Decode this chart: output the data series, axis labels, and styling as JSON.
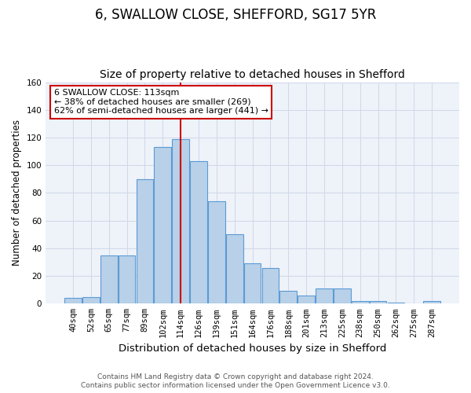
{
  "title1": "6, SWALLOW CLOSE, SHEFFORD, SG17 5YR",
  "title2": "Size of property relative to detached houses in Shefford",
  "xlabel": "Distribution of detached houses by size in Shefford",
  "ylabel": "Number of detached properties",
  "bar_labels": [
    "40sqm",
    "52sqm",
    "65sqm",
    "77sqm",
    "89sqm",
    "102sqm",
    "114sqm",
    "126sqm",
    "139sqm",
    "151sqm",
    "164sqm",
    "176sqm",
    "188sqm",
    "201sqm",
    "213sqm",
    "225sqm",
    "238sqm",
    "250sqm",
    "262sqm",
    "275sqm",
    "287sqm"
  ],
  "bar_values": [
    4,
    5,
    35,
    35,
    90,
    113,
    119,
    103,
    74,
    50,
    29,
    26,
    9,
    6,
    11,
    11,
    2,
    2,
    1,
    0,
    2
  ],
  "bar_color": "#b8d0e8",
  "bar_edge_color": "#5b9bd5",
  "vline_x": 6,
  "vline_color": "#cc0000",
  "annotation_text": "6 SWALLOW CLOSE: 113sqm\n← 38% of detached houses are smaller (269)\n62% of semi-detached houses are larger (441) →",
  "annotation_box_color": "#ffffff",
  "annotation_box_edge": "#cc0000",
  "ylim": [
    0,
    160
  ],
  "yticks": [
    0,
    20,
    40,
    60,
    80,
    100,
    120,
    140,
    160
  ],
  "grid_color": "#d0d8e8",
  "bg_color": "#eef2f9",
  "footer1": "Contains HM Land Registry data © Crown copyright and database right 2024.",
  "footer2": "Contains public sector information licensed under the Open Government Licence v3.0.",
  "title1_fontsize": 12,
  "title2_fontsize": 10,
  "xlabel_fontsize": 9.5,
  "ylabel_fontsize": 8.5,
  "tick_fontsize": 7.5,
  "footer_fontsize": 6.5
}
